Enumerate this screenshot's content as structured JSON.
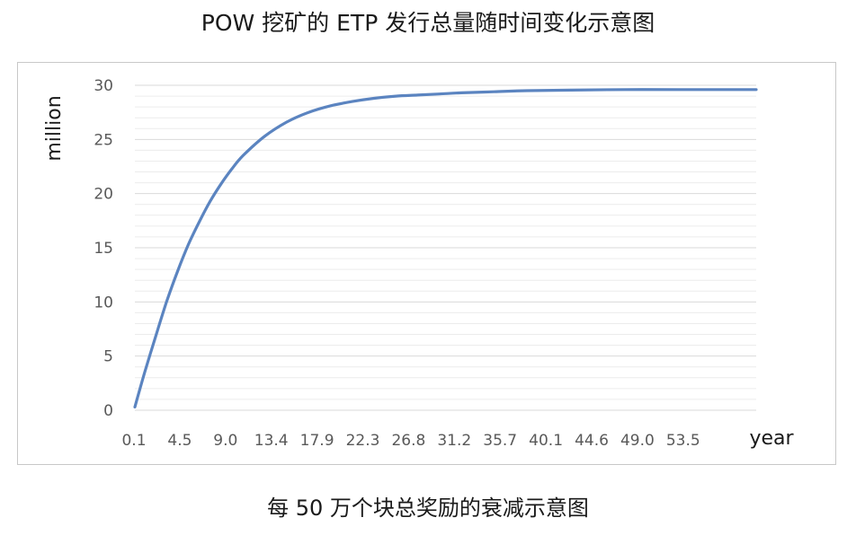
{
  "title": "POW 挖矿的 ETP 发行总量随时间变化示意图",
  "caption": "每 50 万个块总奖励的衰减示意图",
  "chart_data": {
    "type": "line",
    "title": "POW 挖矿的 ETP 发行总量随时间变化示意图",
    "xlabel": "year",
    "ylabel": "million",
    "x_tick_labels": [
      "0.1",
      "4.5",
      "9.0",
      "13.4",
      "17.9",
      "22.3",
      "26.8",
      "31.2",
      "35.7",
      "40.1",
      "44.6",
      "49.0",
      "53.5"
    ],
    "y_ticks": [
      0,
      5,
      10,
      15,
      20,
      25,
      30
    ],
    "ylim": [
      0,
      30
    ],
    "xlim": [
      0.1,
      57.0
    ],
    "grid": true,
    "line_color": "#5b84c0",
    "series": [
      {
        "x": [
          0.1,
          1,
          2,
          3,
          4,
          5,
          6,
          7,
          8,
          9,
          10,
          12,
          14,
          16,
          18,
          20,
          22,
          24,
          26,
          28,
          30,
          33,
          36,
          40,
          45,
          50,
          57
        ],
        "values": [
          0.3,
          3.5,
          6.8,
          10.0,
          12.8,
          15.3,
          17.4,
          19.3,
          20.9,
          22.3,
          23.5,
          25.3,
          26.6,
          27.5,
          28.1,
          28.5,
          28.8,
          29.0,
          29.1,
          29.2,
          29.3,
          29.4,
          29.5,
          29.55,
          29.6,
          29.6,
          29.6
        ]
      }
    ]
  }
}
